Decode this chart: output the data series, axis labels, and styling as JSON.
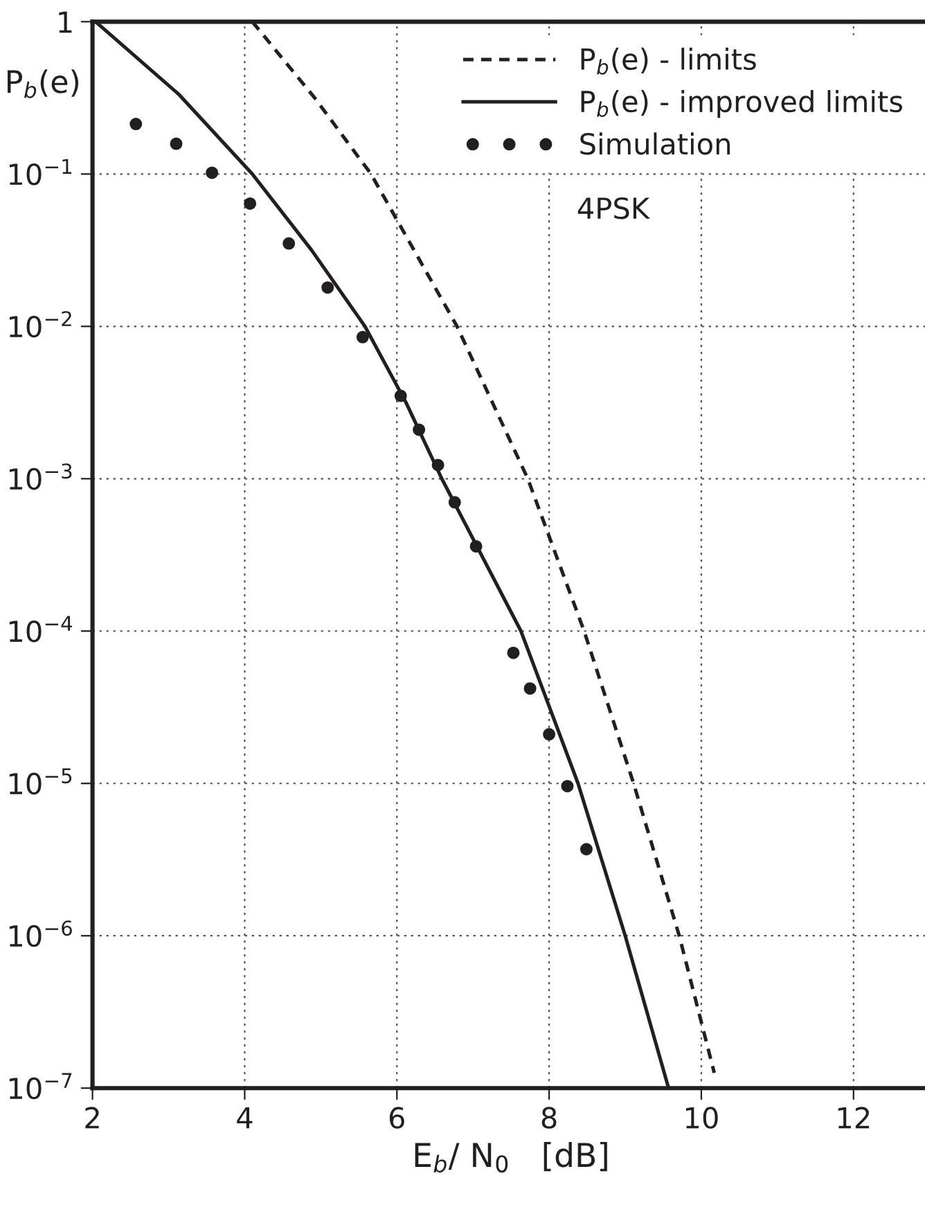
{
  "chart_data": {
    "type": "line",
    "xlabel": "E$_{b}$/ N$_{0}$   [dB]",
    "ylabel": "P$_{b}$(e)",
    "log": "y",
    "xlim": [
      2,
      13
    ],
    "ylim": [
      1e-07,
      1
    ],
    "xticks": [
      2,
      4,
      6,
      8,
      10,
      12
    ],
    "yticks": [
      {
        "value": 1,
        "label": "1"
      },
      {
        "value": 0.1,
        "label": "10$^{−1}$"
      },
      {
        "value": 0.01,
        "label": "10$^{−2}$"
      },
      {
        "value": 0.001,
        "label": "10$^{−3}$"
      },
      {
        "value": 0.0001,
        "label": "10$^{−4}$"
      },
      {
        "value": 1e-05,
        "label": "10$^{−5}$"
      },
      {
        "value": 1e-06,
        "label": "10$^{−6}$"
      },
      {
        "value": 1e-07,
        "label": "10$^{−7}$"
      }
    ],
    "grid": true,
    "legend": "top right",
    "annotations": [
      "4PSK"
    ],
    "series": [
      {
        "name": "P$_{b}$(e) - limits",
        "line_style": "dashed",
        "color": "#231f20",
        "x": [
          4.1,
          4.92,
          5.66,
          6.79,
          7.72,
          8.46,
          9.11,
          9.71,
          10.17
        ],
        "values": [
          1,
          0.316,
          0.1,
          0.01,
          0.001,
          0.0001,
          1e-05,
          1e-06,
          1.26e-07
        ]
      },
      {
        "name": "P$_{b}$(e) - improved limits",
        "line_style": "solid",
        "color": "#231f20",
        "x": [
          2.04,
          3.13,
          4.1,
          4.88,
          5.58,
          6.12,
          6.59,
          7.63,
          8.38,
          9.0,
          9.57
        ],
        "values": [
          1,
          0.335,
          0.1,
          0.0316,
          0.01,
          0.00316,
          0.001,
          0.0001,
          1e-05,
          1e-06,
          1e-07
        ]
      },
      {
        "name": "Simulation",
        "type": "scatter",
        "marker": "circle",
        "color": "#231f20",
        "x": [
          2.57,
          3.1,
          3.57,
          4.07,
          4.58,
          5.09,
          5.55,
          6.05,
          6.29,
          6.54,
          6.76,
          7.04,
          7.53,
          7.75,
          8.0,
          8.24,
          8.49
        ],
        "values": [
          0.213,
          0.158,
          0.102,
          0.064,
          0.035,
          0.018,
          0.0085,
          0.0035,
          0.0021,
          0.00123,
          0.0007,
          0.00036,
          7.2e-05,
          4.2e-05,
          2.1e-05,
          9.6e-06,
          3.7e-06
        ]
      }
    ]
  }
}
